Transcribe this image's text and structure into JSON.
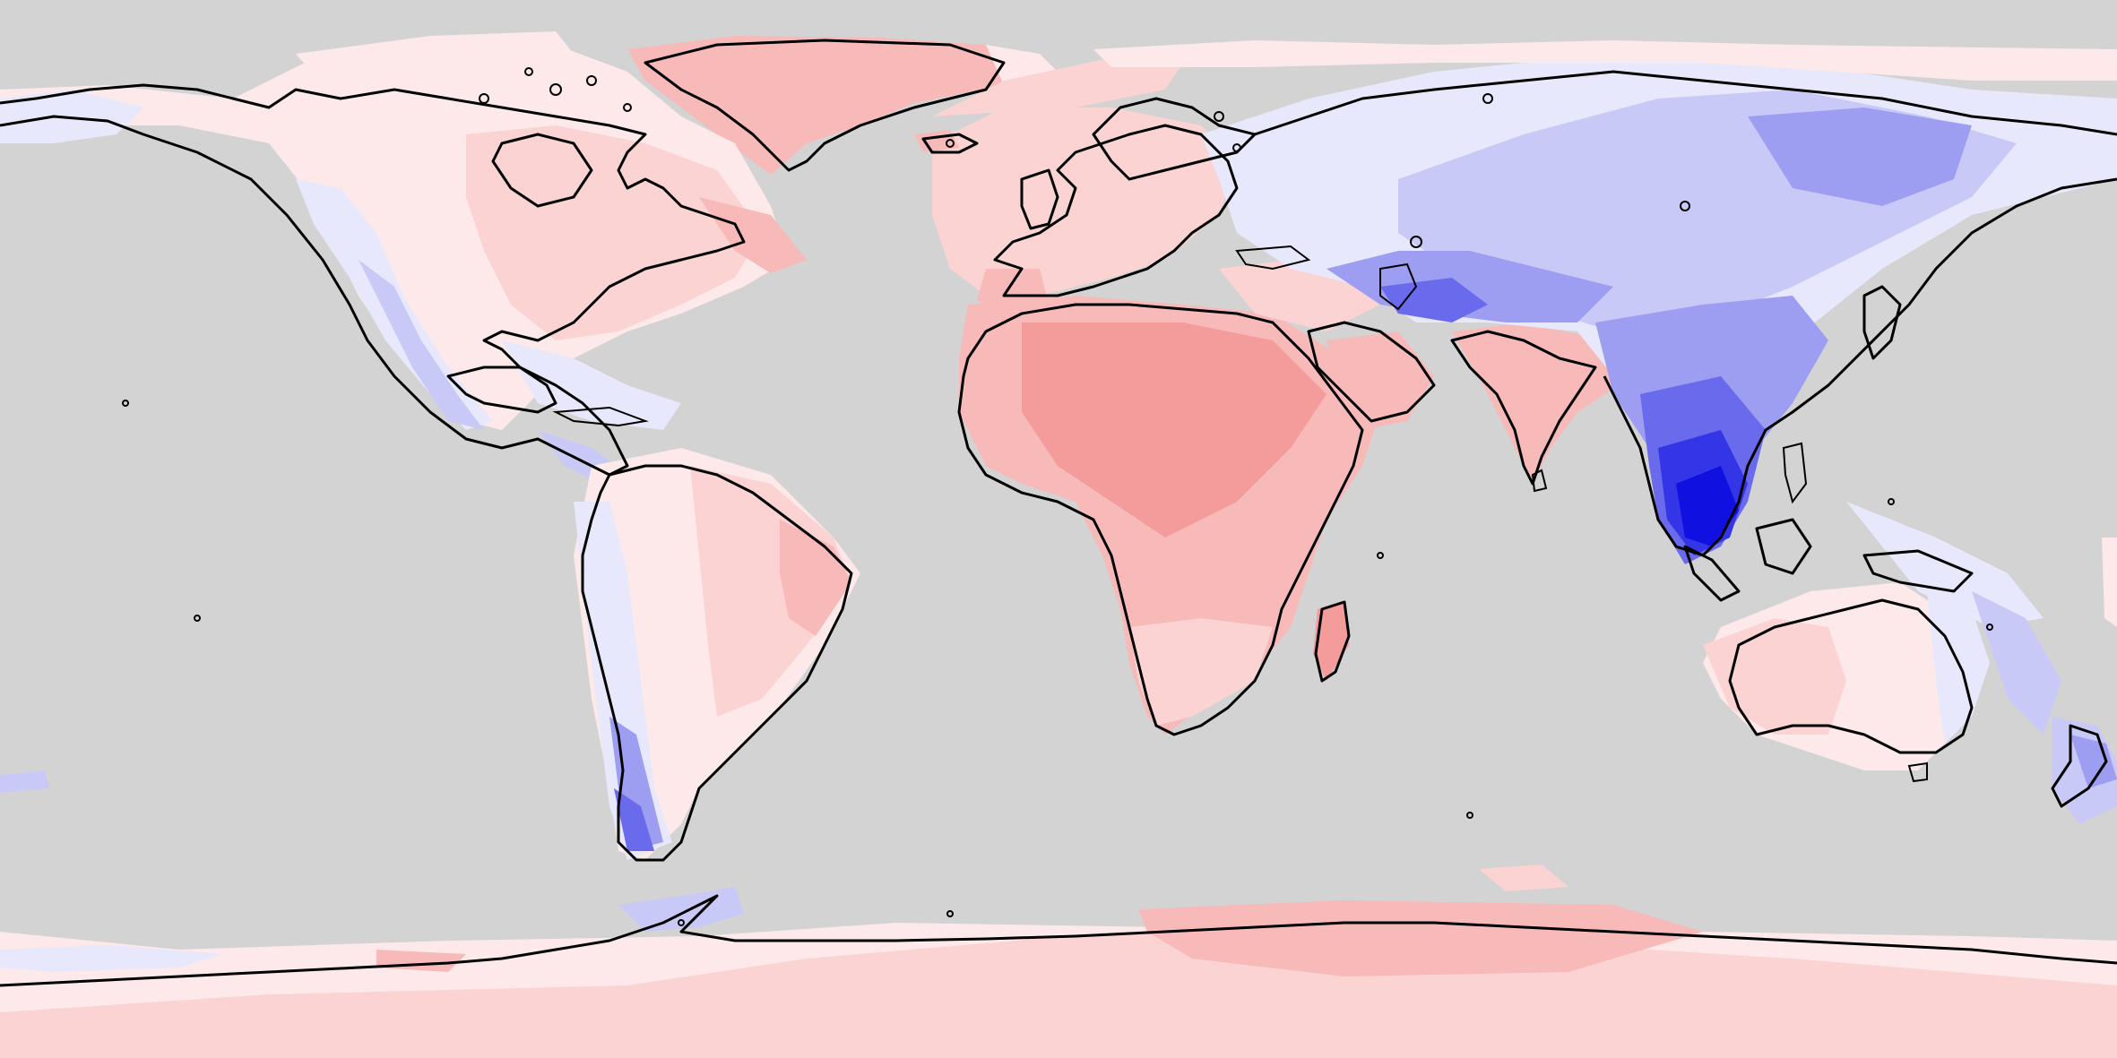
{
  "map": {
    "projection": "equirectangular",
    "extent": {
      "lon": [
        -180,
        180
      ],
      "lat": [
        -90,
        90
      ]
    },
    "background_color": "#d3d3d3",
    "coastline_color": "#000000",
    "has_title": false,
    "has_legend": false,
    "has_colorbar": false
  },
  "colors": {
    "ocean_masked": "#d3d3d3",
    "red_1": "#fde9e9",
    "red_2": "#fbd3d3",
    "red_3": "#f8b9b9",
    "red_4": "#f49b9b",
    "blue_1": "#e8e8fc",
    "blue_2": "#c9c9f8",
    "blue_3": "#9d9df2",
    "blue_4": "#6a6aec",
    "blue_5": "#3535e8",
    "blue_6": "#1010e0"
  }
}
